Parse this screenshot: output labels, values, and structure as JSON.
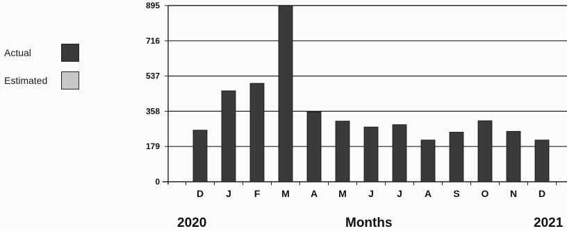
{
  "chart_data": {
    "type": "bar",
    "categories": [
      "D",
      "J",
      "F",
      "M",
      "A",
      "M",
      "J",
      "J",
      "A",
      "S",
      "O",
      "N",
      "D"
    ],
    "series": [
      {
        "name": "Actual",
        "color": "#3a3a3a",
        "values": [
          262,
          462,
          500,
          895,
          355,
          308,
          278,
          290,
          212,
          252,
          310,
          256,
          212
        ]
      }
    ],
    "legend": [
      {
        "name": "Actual",
        "color": "#3a3a3a"
      },
      {
        "name": "Estimated",
        "color": "#c7c7c7"
      }
    ],
    "legend_position": "left",
    "yticks": [
      "0",
      "179",
      "358",
      "537",
      "716",
      "895"
    ],
    "ylim": [
      0,
      895
    ],
    "grid": true,
    "xlabel": "Months",
    "start_label": "2020",
    "end_label": "2021"
  }
}
